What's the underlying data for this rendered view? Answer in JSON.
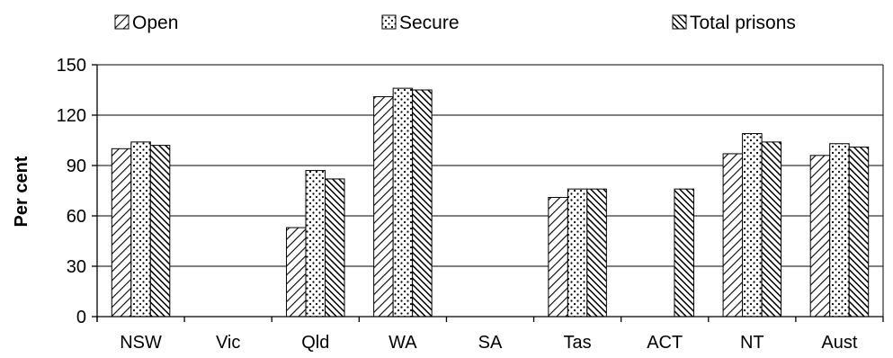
{
  "chart_data": {
    "type": "bar",
    "title": "",
    "xlabel": "",
    "ylabel": "Per cent",
    "ylim": [
      0,
      150
    ],
    "yticks": [
      0,
      30,
      60,
      90,
      120,
      150
    ],
    "grid": true,
    "legend_position": "top",
    "categories": [
      "NSW",
      "Vic",
      "Qld",
      "WA",
      "SA",
      "Tas",
      "ACT",
      "NT",
      "Aust"
    ],
    "series": [
      {
        "name": "Open",
        "pattern": "diagonal-light",
        "values": [
          100,
          null,
          53,
          131,
          null,
          71,
          null,
          97,
          96
        ]
      },
      {
        "name": "Secure",
        "pattern": "dots",
        "values": [
          104,
          null,
          87,
          136,
          null,
          76,
          null,
          109,
          103
        ]
      },
      {
        "name": "Total prisons",
        "pattern": "diagonal-dense",
        "values": [
          102,
          null,
          82,
          135,
          null,
          76,
          76,
          104,
          101
        ]
      }
    ]
  },
  "colors": {
    "axis": "#000000",
    "grid": "#000000",
    "bar_stroke": "#000000",
    "background": "#ffffff"
  }
}
